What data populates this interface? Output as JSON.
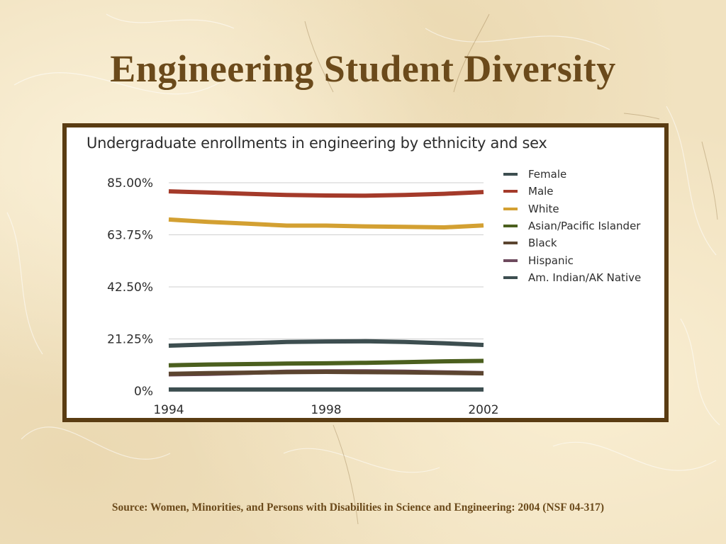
{
  "slide": {
    "title": "Engineering Student Diversity",
    "source": "Source: Women, Minorities, and Persons with Disabilities in Science and Engineering: 2004 (NSF 04-317)"
  },
  "colors": {
    "title": "#6b4a1b",
    "frame": "#5a3c12",
    "background": "#f1e2c0"
  },
  "chart_data": {
    "type": "line",
    "title": "Undergraduate enrollments in engineering by ethnicity and sex",
    "xlabel": "",
    "ylabel": "",
    "x": [
      1994,
      1995,
      1996,
      1997,
      1998,
      1999,
      2000,
      2001,
      2002
    ],
    "x_tick_labels": [
      "1994",
      "1998",
      "2002"
    ],
    "y_tick_labels": [
      "85.00%",
      "63.75%",
      "42.50%",
      "21.25%",
      "0%"
    ],
    "y_ticks": [
      85,
      63.75,
      42.5,
      21.25,
      0
    ],
    "ylim": [
      0,
      85
    ],
    "grid": true,
    "legend_position": "right",
    "series": [
      {
        "name": "Female",
        "color": "#3d4e50",
        "values": [
          18.5,
          19.0,
          19.5,
          20.0,
          20.2,
          20.3,
          20.0,
          19.5,
          18.8
        ]
      },
      {
        "name": "Male",
        "color": "#a43a2a",
        "values": [
          81.5,
          81.0,
          80.5,
          80.0,
          79.8,
          79.7,
          80.0,
          80.5,
          81.2
        ]
      },
      {
        "name": "White",
        "color": "#d3a032",
        "values": [
          70.0,
          69.0,
          68.3,
          67.5,
          67.5,
          67.2,
          67.0,
          66.8,
          67.6
        ]
      },
      {
        "name": "Asian/Pacific Islander",
        "color": "#4b5f1e",
        "values": [
          10.5,
          10.8,
          11.0,
          11.2,
          11.3,
          11.5,
          11.8,
          12.1,
          12.3
        ]
      },
      {
        "name": "Black",
        "color": "#5c4530",
        "values": [
          7.0,
          7.3,
          7.5,
          7.7,
          7.8,
          7.7,
          7.6,
          7.4,
          7.2
        ]
      },
      {
        "name": "Hispanic",
        "color": "#6e4a5e",
        "values": [
          6.8,
          7.0,
          7.4,
          7.9,
          8.0,
          8.0,
          7.9,
          7.6,
          7.3
        ]
      },
      {
        "name": "Am. Indian/AK Native",
        "color": "#3d4e50",
        "values": [
          0.6,
          0.6,
          0.6,
          0.6,
          0.6,
          0.6,
          0.6,
          0.6,
          0.6
        ]
      }
    ]
  }
}
